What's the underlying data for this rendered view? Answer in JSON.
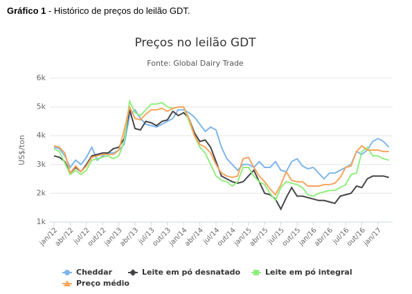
{
  "header": {
    "label": "Gráfico 1",
    "text": " - Histórico de preços do leilão GDT."
  },
  "chart_data": {
    "type": "line",
    "title": "Preços no leilão GDT",
    "subtitle": "Fonte: Global Dairy Trade",
    "y_label": "US$/ton",
    "categories": [
      "jan/12",
      null,
      null,
      "abr/12",
      null,
      null,
      "jul/12",
      null,
      null,
      "out/12",
      null,
      null,
      "jan/13",
      null,
      null,
      "abr/13",
      null,
      null,
      "jul/13",
      null,
      null,
      "out/13",
      null,
      null,
      "jan/14",
      null,
      null,
      "abr/14",
      null,
      null,
      "jul/14",
      null,
      null,
      "out/14",
      null,
      null,
      "jan/15",
      null,
      null,
      "abr/15",
      null,
      null,
      "jul/15",
      null,
      null,
      "out/15",
      null,
      null,
      "jan/16",
      null,
      null,
      "abr/16",
      null,
      null,
      "jul/16",
      null,
      null,
      "out/16",
      null,
      null,
      "jan/17",
      null,
      null
    ],
    "ylim": [
      1000,
      6000
    ],
    "yticks": [
      {
        "value": 1000,
        "label": "1k"
      },
      {
        "value": 2000,
        "label": "2k"
      },
      {
        "value": 3000,
        "label": "3k"
      },
      {
        "value": 4000,
        "label": "4k"
      },
      {
        "value": 5000,
        "label": "5k"
      },
      {
        "value": 6000,
        "label": "6k"
      }
    ],
    "grid": true,
    "series": [
      {
        "name": "Cheddar",
        "color": "#7cb5ec",
        "marker": "circle",
        "values": [
          3600,
          3550,
          3300,
          2900,
          3150,
          3000,
          3250,
          3600,
          3150,
          3300,
          3400,
          3400,
          3500,
          3700,
          4700,
          4900,
          4600,
          4400,
          4350,
          4300,
          4400,
          4500,
          4600,
          4900,
          4900,
          4800,
          4650,
          4400,
          4150,
          4300,
          4200,
          3600,
          3200,
          3000,
          2800,
          3000,
          3000,
          2900,
          3100,
          2900,
          2900,
          3100,
          2800,
          2750,
          3100,
          3200,
          2950,
          2850,
          2900,
          2700,
          2500,
          2700,
          2700,
          2800,
          2900,
          3000,
          3450,
          3350,
          3500,
          3800,
          3900,
          3800,
          3600
        ]
      },
      {
        "name": "Leite em pó desnatado",
        "color": "#434348",
        "marker": "diamond",
        "values": [
          3300,
          3250,
          3100,
          2700,
          2900,
          2750,
          3000,
          3300,
          3350,
          3400,
          3400,
          3550,
          3600,
          3900,
          4900,
          4250,
          4200,
          4500,
          4450,
          4350,
          4500,
          4550,
          4850,
          4700,
          4800,
          4600,
          4100,
          3800,
          3850,
          3600,
          3100,
          2600,
          2500,
          2400,
          2350,
          2400,
          2600,
          2800,
          2400,
          2000,
          1950,
          1800,
          1450,
          1850,
          2200,
          1900,
          1900,
          1850,
          1800,
          1750,
          1750,
          1700,
          1650,
          1900,
          1950,
          2000,
          2250,
          2200,
          2500,
          2600,
          2600,
          2600,
          2550
        ]
      },
      {
        "name": "Leite em pó integral",
        "color": "#90ed7d",
        "marker": "square",
        "values": [
          3550,
          3450,
          3050,
          2650,
          2800,
          2650,
          2800,
          3150,
          3200,
          3250,
          3300,
          3200,
          3300,
          3800,
          5200,
          4800,
          4700,
          4900,
          5100,
          5100,
          5150,
          5000,
          4950,
          5000,
          5000,
          4500,
          4000,
          3600,
          3400,
          3000,
          2600,
          2450,
          2400,
          2250,
          2400,
          2900,
          2900,
          2600,
          2400,
          2300,
          2000,
          1750,
          2200,
          2400,
          2350,
          2300,
          2200,
          1950,
          1900,
          2000,
          2050,
          2100,
          2100,
          2200,
          2300,
          2650,
          2700,
          3450,
          3600,
          3300,
          3300,
          3200,
          3150
        ]
      },
      {
        "name": "Preço médio",
        "color": "#f7a35c",
        "marker": "triangle",
        "values": [
          3650,
          3600,
          3400,
          2700,
          2950,
          2750,
          2950,
          3250,
          3300,
          3350,
          3350,
          3350,
          3500,
          4200,
          5000,
          4600,
          4550,
          4750,
          4900,
          4900,
          4950,
          4850,
          4950,
          5000,
          5000,
          4600,
          4000,
          3700,
          3600,
          3400,
          3000,
          2700,
          2600,
          2550,
          2600,
          3200,
          3250,
          2900,
          2600,
          2400,
          2150,
          1950,
          2300,
          2750,
          2450,
          2400,
          2400,
          2250,
          2250,
          2250,
          2300,
          2300,
          2350,
          2550,
          2900,
          2950,
          3450,
          3650,
          3500,
          3500,
          3500,
          3450,
          3450
        ]
      }
    ]
  }
}
